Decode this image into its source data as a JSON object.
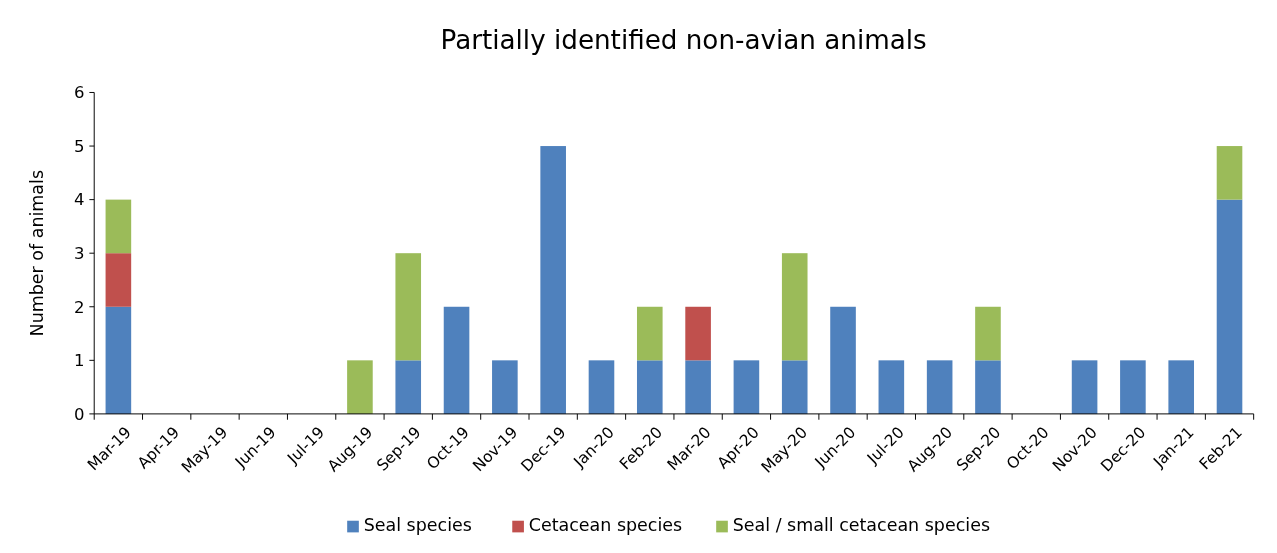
{
  "chart_data": {
    "type": "bar",
    "title": "Partially identified non-avian animals",
    "ylabel": "Number of animals",
    "stacked": true,
    "legend": "bottom",
    "grid": false,
    "categories": [
      "Mar-19",
      "Apr-19",
      "May-19",
      "Jun-19",
      "Jul-19",
      "Aug-19",
      "Sep-19",
      "Oct-19",
      "Nov-19",
      "Dec-19",
      "Jan-20",
      "Feb-20",
      "Mar-20",
      "Apr-20",
      "May-20",
      "Jun-20",
      "Jul-20",
      "Aug-20",
      "Sep-20",
      "Oct-20",
      "Nov-20",
      "Dec-20",
      "Jan-21",
      "Feb-21"
    ],
    "ylim": [
      0,
      6
    ],
    "yticks": [
      0,
      1,
      2,
      3,
      4,
      5,
      6
    ],
    "series": [
      {
        "name": "Seal species",
        "color": "#4f81bd",
        "values": [
          2,
          0,
          0,
          0,
          0,
          0,
          1,
          2,
          1,
          5,
          1,
          1,
          1,
          1,
          1,
          2,
          1,
          1,
          1,
          0,
          1,
          1,
          1,
          4
        ]
      },
      {
        "name": "Cetacean species",
        "color": "#c0504d",
        "values": [
          1,
          0,
          0,
          0,
          0,
          0,
          0,
          0,
          0,
          0,
          0,
          0,
          1,
          0,
          0,
          0,
          0,
          0,
          0,
          0,
          0,
          0,
          0,
          0
        ]
      },
      {
        "name": "Seal / small cetacean species",
        "color": "#9bbb59",
        "values": [
          1,
          0,
          0,
          0,
          0,
          1,
          2,
          0,
          0,
          0,
          0,
          1,
          0,
          0,
          2,
          0,
          0,
          0,
          1,
          0,
          0,
          0,
          0,
          1
        ]
      }
    ]
  }
}
